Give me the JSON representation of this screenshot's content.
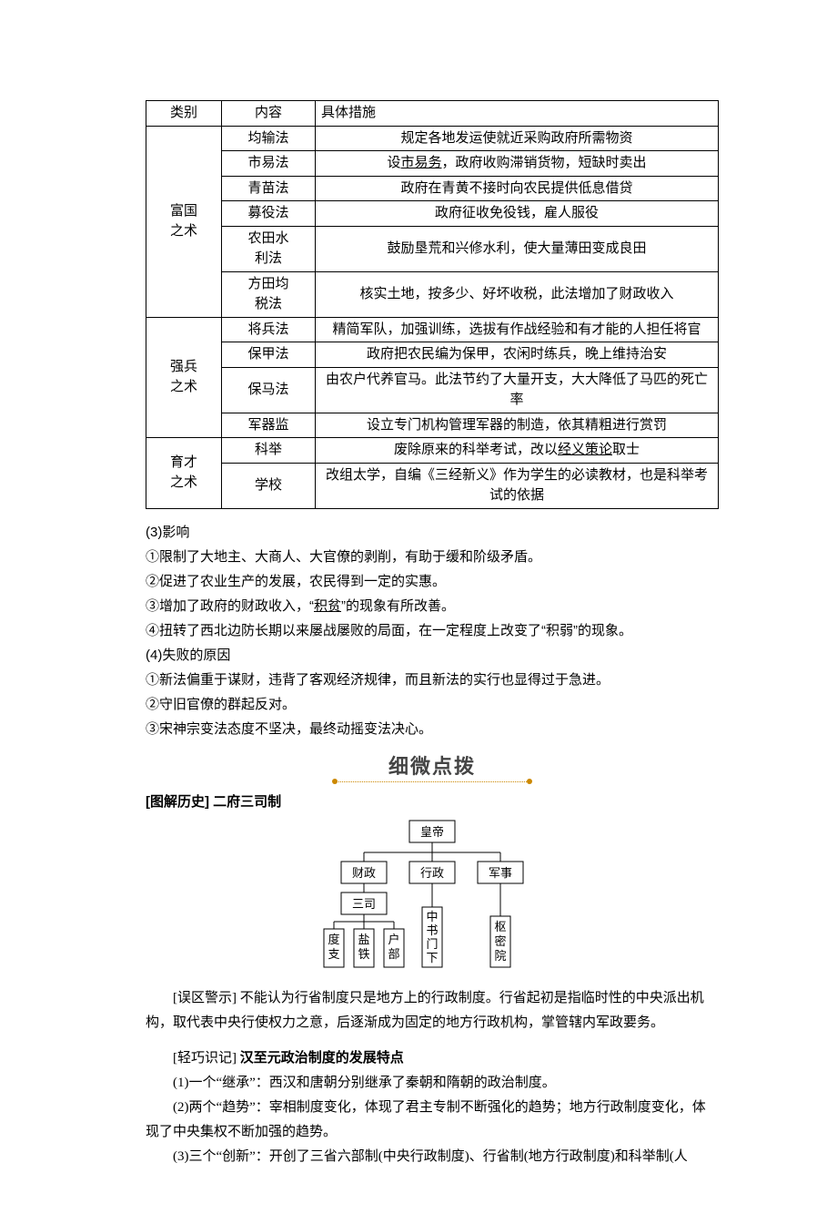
{
  "table": {
    "header": {
      "c1": "类别",
      "c2": "内容",
      "c3": "具体措施"
    },
    "groups": [
      {
        "cat": "富国\n之术",
        "rows": [
          {
            "item": "均输法",
            "desc_pre": "规定各地发运使就近采购政府所需物资",
            "u": "",
            "desc_post": ""
          },
          {
            "item": "市易法",
            "desc_pre": "设",
            "u": "市易务",
            "desc_post": "，政府收购滞销货物，短缺时卖出"
          },
          {
            "item": "青苗法",
            "desc_pre": "政府在青黄不接时向农民提供低息借贷",
            "u": "",
            "desc_post": ""
          },
          {
            "item": "募役法",
            "desc_pre": "政府征收免役钱，雇人服役",
            "u": "",
            "desc_post": ""
          },
          {
            "item": "农田水\n利法",
            "desc_pre": "鼓励垦荒和兴修水利，使大量薄田变成良田",
            "u": "",
            "desc_post": ""
          },
          {
            "item": "方田均\n税法",
            "desc_pre": "核实土地，按多少、好坏收税，此法增加了财政收入",
            "u": "",
            "desc_post": ""
          }
        ]
      },
      {
        "cat": "强兵\n之术",
        "rows": [
          {
            "item": "将兵法",
            "desc_pre": "精简军队，加强训练，选拔有作战经验和有才能的人担任将官",
            "u": "",
            "desc_post": ""
          },
          {
            "item": "保甲法",
            "desc_pre": "政府把农民编为保甲，农闲时练兵，晚上维持治安",
            "u": "",
            "desc_post": ""
          },
          {
            "item": "保马法",
            "desc_pre": "由农户代养官马。此法节约了大量开支，大大降低了马匹的死亡率",
            "u": "",
            "desc_post": ""
          },
          {
            "item": "军器监",
            "desc_pre": "设立专门机构管理军器的制造，依其精粗进行赏罚",
            "u": "",
            "desc_post": ""
          }
        ]
      },
      {
        "cat": "育才\n之术",
        "rows": [
          {
            "item": "科举",
            "desc_pre": "废除原来的科举考试，改以",
            "u": "经义策论",
            "desc_post": "取士"
          },
          {
            "item": "学校",
            "desc_pre": "改组太学，自编《三经新义》作为学生的必读教材，也是科举考试的依据",
            "u": "",
            "desc_post": ""
          }
        ]
      }
    ]
  },
  "effects": {
    "title": "(3)影响",
    "lines": [
      "①限制了大地主、大商人、大官僚的剥削，有助于缓和阶级矛盾。",
      "②促进了农业生产的发展，农民得到一定的实惠。"
    ],
    "line3_pre": "③增加了政府的财政收入，“",
    "line3_u": "积贫",
    "line3_post": "”的现象有所改善。",
    "line4": "④扭转了西北边防长期以来屡战屡败的局面，在一定程度上改变了“积弱”的现象。"
  },
  "fail": {
    "title": "(4)失败的原因",
    "lines": [
      "①新法偏重于谋财，违背了客观经济规律，而且新法的实行也显得过于急进。",
      "②守旧官僚的群起反对。",
      "③宋神宗变法态度不坚决，最终动摇变法决心。"
    ]
  },
  "heading": "细微点拨",
  "chart_title": "[图解历史]  二府三司制",
  "chart": {
    "nodes": {
      "emperor": "皇帝",
      "finance": "财政",
      "admin": "行政",
      "military": "军事",
      "sansi": "三司",
      "duzhi": "度支",
      "yantie": "盐铁",
      "hubu": "户部",
      "zhongshu": "中书门下",
      "shumi": "枢密院"
    },
    "colors": {
      "line": "#000000",
      "fill": "#ffffff",
      "text": "#000000"
    }
  },
  "warning": {
    "label": "[误区警示] ",
    "text": "不能认为行省制度只是地方上的行政制度。行省起初是指临时性的中央派出机构，取代表中央行使权力之意，后逐渐成为固定的地方行政机构，掌管辖内军政要务。"
  },
  "memo": {
    "label": "[轻巧识记]  ",
    "title": "汉至元政治制度的发展特点",
    "items": [
      "(1)一个“继承”：西汉和唐朝分别继承了秦朝和隋朝的政治制度。",
      "(2)两个“趋势”：宰相制度变化，体现了君主专制不断强化的趋势；地方行政制度变化，体现了中央集权不断加强的趋势。",
      "(3)三个“创新”：开创了三省六部制(中央行政制度)、行省制(地方行政制度)和科举制(人"
    ]
  }
}
